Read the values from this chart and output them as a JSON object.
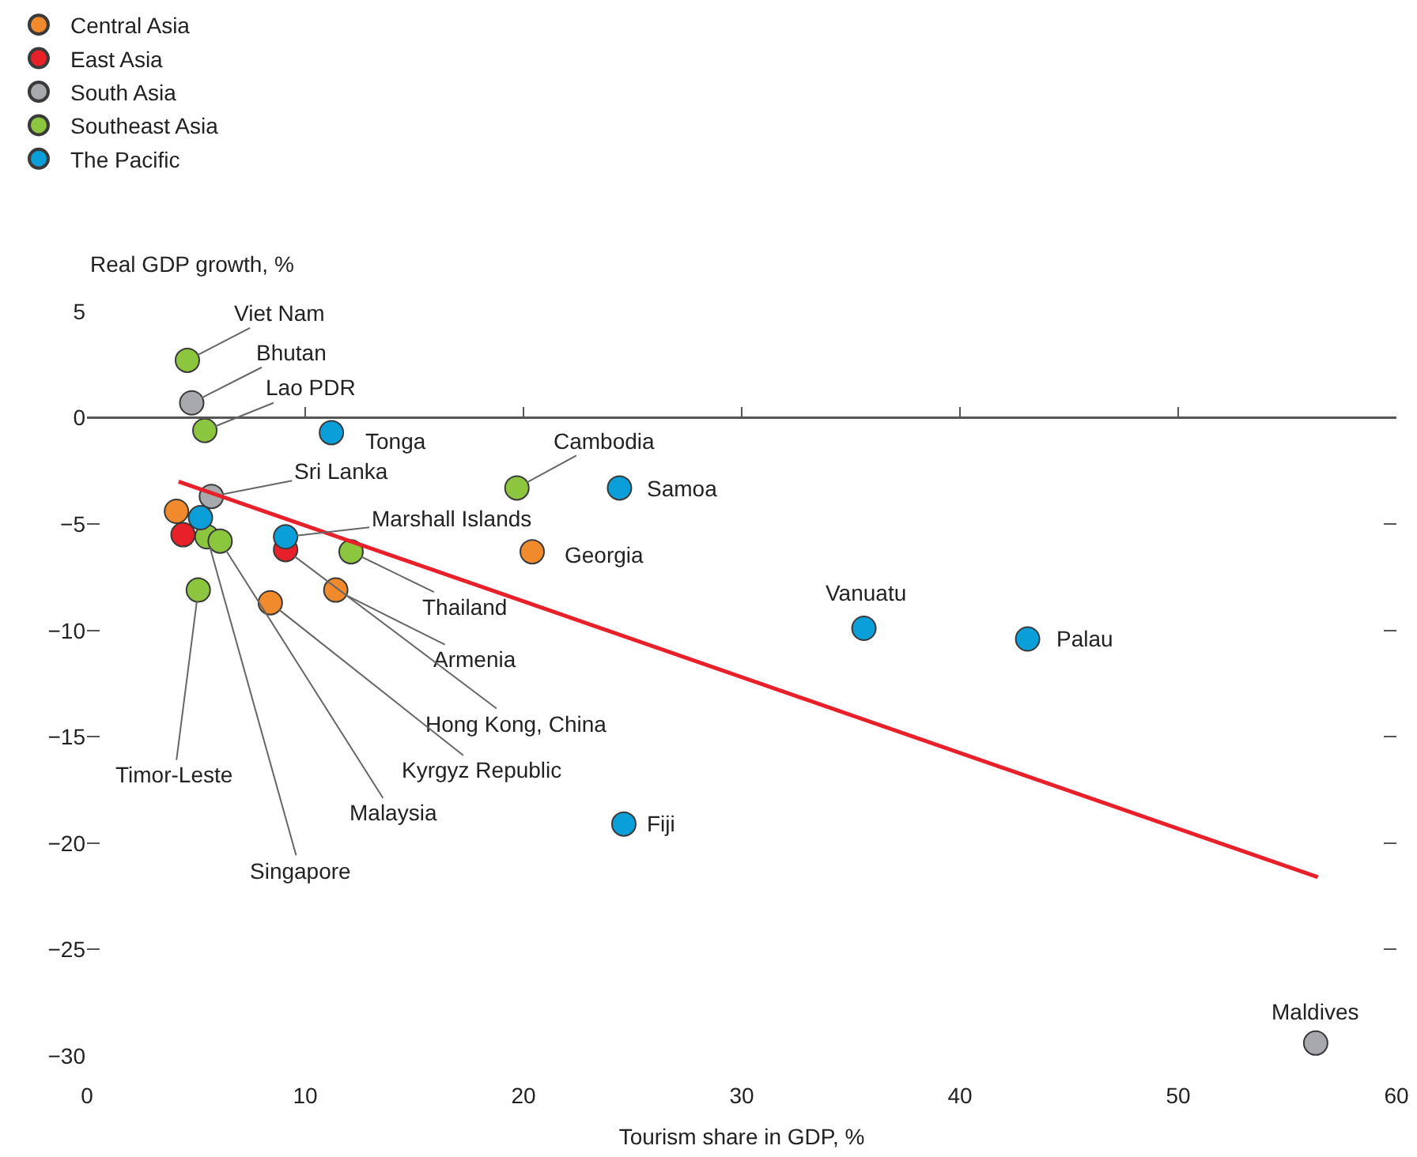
{
  "chart_data": {
    "type": "scatter",
    "xlabel": "Tourism share in GDP, %",
    "ylabel": "Real GDP growth, %",
    "series": [
      {
        "name": "Central Asia",
        "color": "#f08a2c",
        "x": [
          4.1,
          8.4,
          11.4,
          20.4
        ],
        "values": [
          -4.4,
          -8.7,
          -8.1,
          -6.3
        ]
      },
      {
        "name": "East Asia",
        "color": "#e8202a",
        "x": [
          4.4,
          9.1
        ],
        "values": [
          -5.5,
          -6.2
        ]
      },
      {
        "name": "South Asia",
        "color": "#a7a9ac",
        "x": [
          4.8,
          5.7,
          56.3
        ],
        "values": [
          0.7,
          -3.7,
          -29.4
        ]
      },
      {
        "name": "Southeast Asia",
        "color": "#8cc63f",
        "x": [
          4.6,
          5.4,
          19.7,
          5.5,
          6.1,
          12.1,
          5.1
        ],
        "values": [
          2.7,
          -0.6,
          -3.3,
          -5.6,
          -5.8,
          -6.3,
          -8.1
        ]
      },
      {
        "name": "The Pacific",
        "color": "#0a9fd8",
        "x": [
          11.2,
          24.4,
          5.2,
          9.1,
          35.6,
          43.1,
          24.6
        ],
        "values": [
          -0.7,
          -3.3,
          -4.7,
          -5.6,
          -9.9,
          -10.4,
          -19.1
        ]
      },
      {
        "type": "line",
        "marker": "none",
        "color": "#e8202a",
        "x": [
          4.2,
          56.4
        ],
        "values": [
          -3.0,
          -21.6
        ]
      }
    ],
    "annotations": [
      {
        "text": "Viet Nam",
        "x": 4.6,
        "y": 2.7
      },
      {
        "text": "Bhutan",
        "x": 4.8,
        "y": 0.7
      },
      {
        "text": "Lao PDR",
        "x": 5.4,
        "y": -0.6
      },
      {
        "text": "Tonga",
        "x": 11.2,
        "y": -0.7
      },
      {
        "text": "Cambodia",
        "x": 19.7,
        "y": -3.3
      },
      {
        "text": "Samoa",
        "x": 24.4,
        "y": -3.3
      },
      {
        "text": "Sri Lanka",
        "x": 5.7,
        "y": -3.7
      },
      {
        "text": "Marshall Islands",
        "x": 9.1,
        "y": -5.6
      },
      {
        "text": "Georgia",
        "x": 20.4,
        "y": -6.3
      },
      {
        "text": "Thailand",
        "x": 12.1,
        "y": -6.3
      },
      {
        "text": "Armenia",
        "x": 11.4,
        "y": -8.1
      },
      {
        "text": "Hong Kong, China",
        "x": 9.1,
        "y": -6.2
      },
      {
        "text": "Kyrgyz Republic",
        "x": 8.4,
        "y": -8.7
      },
      {
        "text": "Malaysia",
        "x": 6.1,
        "y": -5.8
      },
      {
        "text": "Singapore",
        "x": 5.5,
        "y": -5.6
      },
      {
        "text": "Timor-Leste",
        "x": 5.1,
        "y": -8.1
      },
      {
        "text": "Vanuatu",
        "x": 35.6,
        "y": -9.9
      },
      {
        "text": "Palau",
        "x": 43.1,
        "y": -10.4
      },
      {
        "text": "Fiji",
        "x": 24.6,
        "y": -19.1
      },
      {
        "text": "Maldives",
        "x": 56.3,
        "y": -29.4
      }
    ],
    "xlim": [
      0,
      60
    ],
    "xticks": [
      0,
      10,
      20,
      30,
      40,
      50,
      60
    ],
    "ylim": [
      -30,
      5
    ],
    "yticks": [
      5,
      0,
      {
        "value": -5,
        "label": "−5"
      },
      {
        "value": -10,
        "label": "−10"
      },
      {
        "value": -15,
        "label": "−15"
      },
      {
        "value": -20,
        "label": "−20"
      },
      {
        "value": -25,
        "label": "−25"
      },
      {
        "value": -30,
        "label": "−30"
      }
    ],
    "ref_lines": [
      {
        "axis": "y",
        "value": 0,
        "color": "#555555"
      }
    ],
    "grid": false,
    "legend": "top left",
    "marker": "circle"
  }
}
